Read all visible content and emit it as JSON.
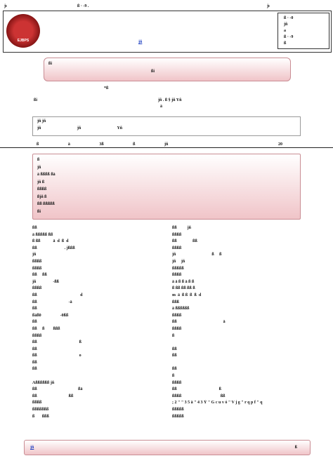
{
  "header": {
    "journal": "jı",
    "volume": "ß · -9 .",
    "page": "jı"
  },
  "masthead": {
    "logo_text": "EJBPS",
    "link": "jñ",
    "side": [
      "ß · -0",
      "jñ",
      "a",
      "ß · -9",
      "ß"
    ]
  },
  "title": {
    "line1": "ßi",
    "line2": "ßi"
  },
  "authors": {
    "line1": "ßi",
    "line2": "jñ . ß § jñ Yñ",
    "mark": "*ß",
    "sub": "ä"
  },
  "affiliation": {
    "line1": "jñ jñ",
    "line2": "jñ jñ Yñ"
  },
  "article_info": [
    "ß ä 3ß ß jñ",
    "20"
  ],
  "abstract": {
    "lines": [
      "ß",
      "jñ",
      "ä ßßßß ßä",
      "jñ ß",
      "ßßßß",
      "ßjñ ß",
      "ßß ßßßßß",
      "ßi"
    ]
  },
  "columns": {
    "left": [
      "ßß",
      "ä ßßßßß ßß",
      "ß ßß            ä  d  ß  d",
      "ßß                          . jßßß",
      "jñ",
      "ßßßß",
      "ßßßß",
      "ßß     ßß",
      "jñ                -ßß",
      "ßßßß",
      "ßß                                         d",
      "ßß                              -ä",
      "ßß",
      "ßäß0                  -0ßß",
      "ßß",
      "ßß     ß        ßßß",
      "ßßßß",
      "ßß                                        ß",
      "ßß",
      "ßß                                        o",
      "ßß",
      "ßß",
      "",
      "Aßßßßßß jñ",
      "ßß                                       ßä",
      "ßß                              ßß",
      "ßßßß",
      "ßßßßßßß",
      "ß       ßßß"
    ],
    "right": [
      "ßß          jñ",
      "ßßßß",
      "ßß               ßß",
      "ßßßß",
      "jñ                                  ß     ß",
      "jñ     jñ",
      "ßßßßß",
      "ßßßß",
      "ä ä ß ß ä ß ß",
      "ß ßß ßß ßß ß",
      "m  ä  ß ß  ß  ß  d",
      "ßßß",
      "ä ßßßßßß",
      "ßßßß",
      "ßß                                            ä",
      "ßßßß",
      "ß",
      "",
      "ßß",
      "ßß",
      "",
      "ßß",
      "ß",
      "ßßßß",
      "ßß                                        ß",
      "ßßßß                                     ßß",
      "; 2 \" \" 3 5 ä \" 4 3 Ý \" G c u v ó \" V j g \" r q p f \" q",
      "ßßßßß",
      "ßßßßß"
    ]
  },
  "footer": {
    "link": "jñ",
    "page": "ß"
  }
}
